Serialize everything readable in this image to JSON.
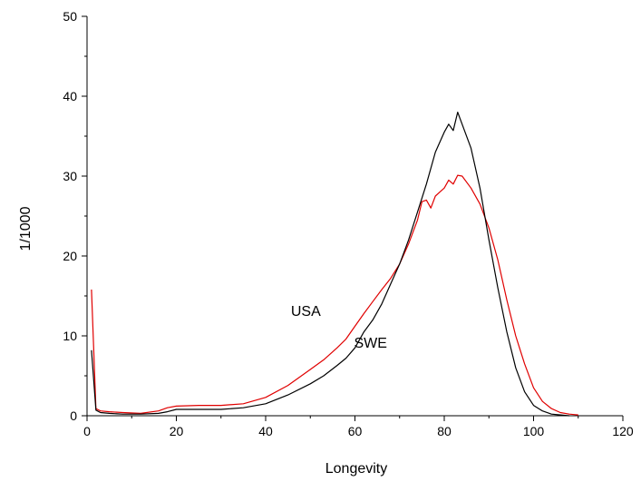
{
  "chart_data": {
    "type": "line",
    "xlabel": "Longevity",
    "ylabel": "1/1000",
    "xlim": [
      0,
      120
    ],
    "ylim": [
      0,
      50
    ],
    "x_ticks": [
      0,
      20,
      40,
      60,
      80,
      100,
      120
    ],
    "y_ticks": [
      0,
      10,
      20,
      30,
      40,
      50
    ],
    "grid": false,
    "legend": "none",
    "series": [
      {
        "name": "USA",
        "color": "#e00000",
        "points": [
          [
            1,
            15.8
          ],
          [
            2,
            0.9
          ],
          [
            3,
            0.6
          ],
          [
            5,
            0.5
          ],
          [
            8,
            0.4
          ],
          [
            12,
            0.3
          ],
          [
            16,
            0.6
          ],
          [
            18,
            1.0
          ],
          [
            20,
            1.2
          ],
          [
            25,
            1.3
          ],
          [
            30,
            1.3
          ],
          [
            35,
            1.5
          ],
          [
            40,
            2.3
          ],
          [
            45,
            3.8
          ],
          [
            50,
            5.8
          ],
          [
            53,
            7.0
          ],
          [
            56,
            8.5
          ],
          [
            58,
            9.6
          ],
          [
            60,
            11.2
          ],
          [
            62,
            12.8
          ],
          [
            64,
            14.3
          ],
          [
            66,
            15.8
          ],
          [
            68,
            17.2
          ],
          [
            70,
            19.0
          ],
          [
            72,
            21.5
          ],
          [
            74,
            24.5
          ],
          [
            75,
            26.8
          ],
          [
            76,
            27.0
          ],
          [
            77,
            26.0
          ],
          [
            78,
            27.5
          ],
          [
            79,
            28.0
          ],
          [
            80,
            28.5
          ],
          [
            81,
            29.5
          ],
          [
            82,
            29.0
          ],
          [
            83,
            30.1
          ],
          [
            84,
            30.0
          ],
          [
            86,
            28.5
          ],
          [
            88,
            26.5
          ],
          [
            90,
            23.5
          ],
          [
            92,
            19.5
          ],
          [
            94,
            14.5
          ],
          [
            96,
            10.0
          ],
          [
            98,
            6.5
          ],
          [
            100,
            3.5
          ],
          [
            102,
            1.8
          ],
          [
            104,
            0.9
          ],
          [
            106,
            0.4
          ],
          [
            108,
            0.2
          ],
          [
            110,
            0.1
          ]
        ]
      },
      {
        "name": "SWE",
        "color": "#000000",
        "points": [
          [
            1,
            8.2
          ],
          [
            2,
            0.7
          ],
          [
            3,
            0.4
          ],
          [
            5,
            0.3
          ],
          [
            8,
            0.2
          ],
          [
            12,
            0.2
          ],
          [
            16,
            0.3
          ],
          [
            18,
            0.5
          ],
          [
            20,
            0.8
          ],
          [
            25,
            0.8
          ],
          [
            30,
            0.8
          ],
          [
            35,
            1.0
          ],
          [
            40,
            1.5
          ],
          [
            45,
            2.6
          ],
          [
            50,
            4.0
          ],
          [
            53,
            5.0
          ],
          [
            56,
            6.3
          ],
          [
            58,
            7.2
          ],
          [
            60,
            8.5
          ],
          [
            62,
            10.5
          ],
          [
            64,
            12.0
          ],
          [
            66,
            14.0
          ],
          [
            68,
            16.5
          ],
          [
            70,
            19.0
          ],
          [
            72,
            22.0
          ],
          [
            74,
            25.5
          ],
          [
            76,
            29.0
          ],
          [
            78,
            33.0
          ],
          [
            80,
            35.5
          ],
          [
            81,
            36.5
          ],
          [
            82,
            35.7
          ],
          [
            83,
            38.0
          ],
          [
            84,
            36.5
          ],
          [
            86,
            33.5
          ],
          [
            88,
            28.5
          ],
          [
            90,
            22.0
          ],
          [
            92,
            16.0
          ],
          [
            94,
            10.5
          ],
          [
            96,
            6.0
          ],
          [
            98,
            3.0
          ],
          [
            100,
            1.3
          ],
          [
            102,
            0.6
          ],
          [
            104,
            0.2
          ],
          [
            106,
            0.1
          ],
          [
            108,
            0.0
          ]
        ]
      }
    ],
    "annotations": [
      {
        "text": "USA",
        "x": 49,
        "y": 12.5
      },
      {
        "text": "SWE",
        "x": 63.5,
        "y": 8.5
      }
    ]
  }
}
